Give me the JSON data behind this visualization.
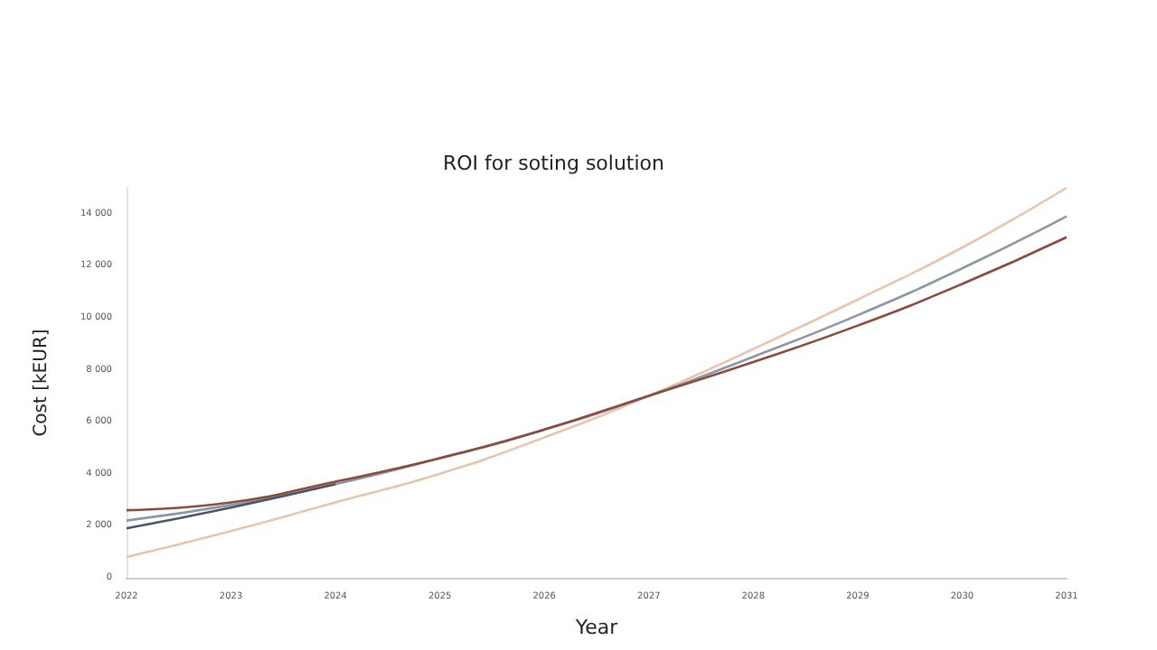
{
  "chart_data": {
    "type": "line",
    "title": "ROI for soting solution",
    "xlabel": "Year",
    "ylabel": "Cost [kEUR]",
    "categories": [
      "2022",
      "2023",
      "2024",
      "2025",
      "2026",
      "2027",
      "2028",
      "2029",
      "2030",
      "2031"
    ],
    "series": [
      {
        "color": "#e8c4ac",
        "values": [
          800,
          1800,
          2900,
          4000,
          5400,
          7000,
          8800,
          10700,
          12700,
          15000
        ]
      },
      {
        "color": "#8c97a6",
        "values": [
          2200,
          2800,
          3600,
          4600,
          5700,
          7000,
          8500,
          10100,
          11900,
          13900
        ]
      },
      {
        "color": "#4a5468",
        "values": [
          1900,
          2700,
          3600,
          null,
          null,
          null,
          null,
          null,
          null,
          null
        ]
      },
      {
        "color": "#8a4a3c",
        "values": [
          2600,
          2900,
          3700,
          4600,
          5700,
          7000,
          8300,
          9700,
          11300,
          13100
        ]
      }
    ],
    "ylim": [
      0,
      15000
    ],
    "yticks": [
      {
        "value": 0,
        "label": "0"
      },
      {
        "value": 2000,
        "label": "2 000"
      },
      {
        "value": 4000,
        "label": "4 000"
      },
      {
        "value": 6000,
        "label": "6 000"
      },
      {
        "value": 8000,
        "label": "8 000"
      },
      {
        "value": 10000,
        "label": "10 000"
      },
      {
        "value": 12000,
        "label": "12 000"
      },
      {
        "value": 14000,
        "label": "14 000"
      }
    ],
    "grid": false,
    "marker": "none",
    "line_style": "solid"
  }
}
